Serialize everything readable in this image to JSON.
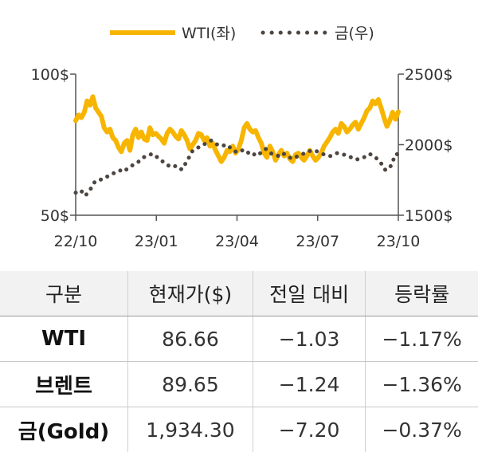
{
  "chart_data": {
    "type": "line",
    "x_tick_labels": [
      "22/10",
      "23/01",
      "23/04",
      "23/07",
      "23/10"
    ],
    "y_left": {
      "ticks": [
        100,
        50
      ],
      "tick_labels": [
        "100$",
        "50$"
      ],
      "range": [
        50,
        100
      ]
    },
    "y_right": {
      "ticks": [
        2500,
        2000,
        1500
      ],
      "tick_labels": [
        "2500$",
        "2000$",
        "1500$"
      ],
      "range": [
        1500,
        2500
      ]
    },
    "series": [
      {
        "name": "WTI(좌)",
        "axis": "left",
        "style": "solid",
        "color": "#f7b500",
        "values": [
          83.5,
          85.5,
          84.6,
          86.5,
          90.5,
          89.0,
          92.0,
          88.0,
          86.5,
          85.0,
          81.0,
          79.5,
          80.5,
          77.5,
          76.5,
          74.0,
          72.5,
          75.5,
          76.5,
          73.0,
          78.5,
          80.5,
          77.5,
          79.5,
          77.0,
          76.5,
          81.0,
          78.5,
          79.0,
          78.0,
          77.0,
          75.5,
          79.0,
          80.5,
          79.5,
          78.0,
          77.0,
          80.0,
          78.5,
          76.5,
          73.5,
          75.0,
          76.5,
          79.0,
          78.5,
          76.5,
          77.5,
          74.5,
          75.5,
          73.0,
          71.0,
          69.0,
          70.5,
          73.0,
          72.5,
          74.5,
          72.0,
          73.5,
          76.5,
          81.0,
          82.5,
          80.5,
          79.5,
          80.0,
          77.5,
          75.5,
          72.0,
          70.5,
          74.5,
          72.5,
          69.5,
          71.5,
          73.0,
          71.0,
          72.0,
          70.0,
          69.0,
          71.5,
          72.0,
          70.5,
          69.5,
          71.0,
          73.0,
          71.0,
          69.5,
          70.5,
          72.0,
          74.5,
          76.0,
          77.5,
          79.5,
          80.5,
          79.0,
          82.5,
          81.5,
          79.5,
          80.5,
          82.0,
          83.0,
          80.5,
          82.5,
          84.5,
          87.0,
          88.0,
          90.5,
          89.5,
          91.0,
          88.0,
          84.5,
          81.5,
          83.5,
          86.5,
          84.0,
          86.66
        ]
      },
      {
        "name": "금(우)",
        "axis": "right",
        "style": "dotted",
        "color": "#4d4540",
        "values": [
          1660,
          1650,
          1670,
          1640,
          1665,
          1700,
          1740,
          1745,
          1755,
          1770,
          1775,
          1790,
          1800,
          1805,
          1820,
          1810,
          1830,
          1845,
          1860,
          1870,
          1890,
          1910,
          1920,
          1930,
          1935,
          1915,
          1900,
          1880,
          1860,
          1850,
          1840,
          1850,
          1830,
          1825,
          1865,
          1905,
          1950,
          1970,
          1980,
          1990,
          2005,
          2015,
          2030,
          2010,
          2000,
          1990,
          1995,
          2000,
          1975,
          1960,
          1945,
          1950,
          1965,
          1955,
          1930,
          1925,
          1945,
          1935,
          1960,
          1970,
          1950,
          1930,
          1925,
          1920,
          1940,
          1930,
          1915,
          1900,
          1910,
          1920,
          1930,
          1940,
          1955,
          1955,
          1960,
          1950,
          1940,
          1930,
          1920,
          1920,
          1930,
          1940,
          1935,
          1930,
          1925,
          1915,
          1900,
          1895,
          1900,
          1905,
          1920,
          1935,
          1925,
          1910,
          1880,
          1860,
          1820,
          1830,
          1860,
          1930,
          1934.3
        ]
      }
    ]
  },
  "legend": [
    {
      "label": "WTI(좌)",
      "style": "solid",
      "color": "#f7b500"
    },
    {
      "label": "금(우)",
      "style": "dotted",
      "color": "#4d4540"
    }
  ],
  "table": {
    "headers": [
      "구분",
      "현재가($)",
      "전일 대비",
      "등락률"
    ],
    "rows": [
      {
        "name": "WTI",
        "price": "86.66",
        "change": "−1.03",
        "rate": "−1.17%"
      },
      {
        "name": "브렌트",
        "price": "89.65",
        "change": "−1.24",
        "rate": "−1.36%"
      },
      {
        "name": "금(Gold)",
        "price": "1,934.30",
        "change": "−7.20",
        "rate": "−0.37%"
      }
    ]
  }
}
